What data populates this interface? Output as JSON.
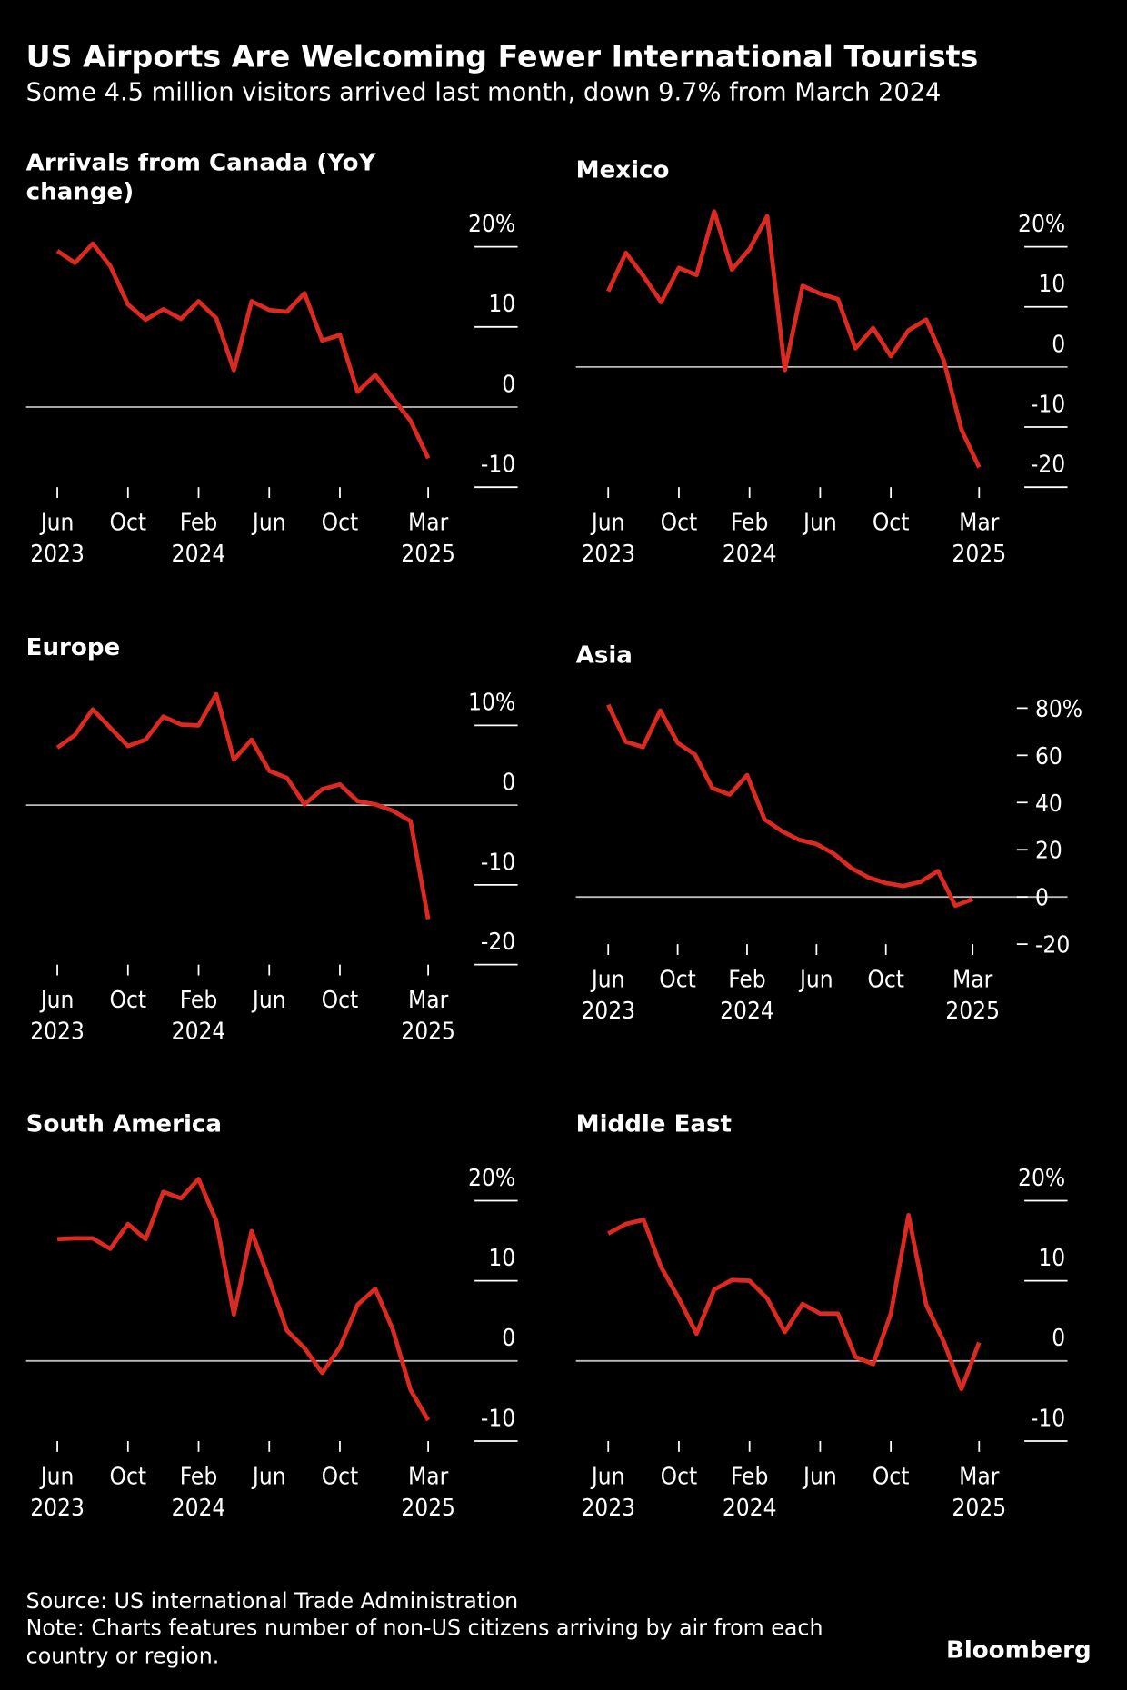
{
  "title": "US Airports Are Welcoming Fewer International Tourists",
  "subtitle": "Some 4.5 million visitors arrived last month, down 9.7% from March 2024",
  "source": "Source: US international Trade Administration",
  "note": "Note: Charts features number of non-US citizens arriving by air from each country or region.",
  "brand": "Bloomberg",
  "chart_data": [
    {
      "type": "line",
      "title": "Arrivals from Canada (YoY change)",
      "color": "#dc2a22",
      "x": [
        "2023-06",
        "2023-07",
        "2023-08",
        "2023-09",
        "2023-10",
        "2023-11",
        "2023-12",
        "2024-01",
        "2024-02",
        "2024-03",
        "2024-04",
        "2024-05",
        "2024-06",
        "2024-07",
        "2024-08",
        "2024-09",
        "2024-10",
        "2024-11",
        "2024-12",
        "2025-01",
        "2025-02",
        "2025-03"
      ],
      "values": [
        19.5,
        18,
        20.4,
        17.6,
        12.8,
        10.9,
        12.2,
        11,
        13.2,
        11.1,
        4.6,
        13.2,
        12.1,
        11.9,
        14.2,
        8.3,
        9,
        1.9,
        4,
        1.1,
        -1.7,
        -6.4
      ],
      "xticks": [
        {
          "value": "2023-06",
          "label": "Jun 2023"
        },
        {
          "value": "2023-10",
          "label": "Oct"
        },
        {
          "value": "2024-02",
          "label": "Feb 2024"
        },
        {
          "value": "2024-06",
          "label": "Jun"
        },
        {
          "value": "2024-10",
          "label": "Oct"
        },
        {
          "value": "2025-03",
          "label": "Mar 2025"
        }
      ],
      "ylim": [
        -10,
        20
      ],
      "yticks": [
        {
          "value": 20,
          "label": "20%"
        },
        10,
        0,
        -10
      ]
    },
    {
      "type": "line",
      "title": "Mexico",
      "color": "#dc2a22",
      "x": [
        "2023-06",
        "2023-07",
        "2023-08",
        "2023-09",
        "2023-10",
        "2023-11",
        "2023-12",
        "2024-01",
        "2024-02",
        "2024-03",
        "2024-04",
        "2024-05",
        "2024-06",
        "2024-07",
        "2024-08",
        "2024-09",
        "2024-10",
        "2024-11",
        "2024-12",
        "2025-01",
        "2025-02",
        "2025-03"
      ],
      "values": [
        12.6,
        19,
        15.1,
        10.8,
        16.5,
        15.3,
        25.9,
        16.2,
        19.6,
        25.1,
        -0.5,
        13.5,
        12.2,
        11.3,
        3.1,
        6.5,
        1.8,
        6.1,
        7.9,
        1.1,
        -10.4,
        -16.7
      ],
      "xticks": [
        {
          "value": "2023-06",
          "label": "Jun 2023"
        },
        {
          "value": "2023-10",
          "label": "Oct"
        },
        {
          "value": "2024-02",
          "label": "Feb 2024"
        },
        {
          "value": "2024-06",
          "label": "Jun"
        },
        {
          "value": "2024-10",
          "label": "Oct"
        },
        {
          "value": "2025-03",
          "label": "Mar 2025"
        }
      ],
      "ylim": [
        -20,
        20
      ],
      "yticks": [
        {
          "value": 20,
          "label": "20%"
        },
        10,
        0,
        -10,
        -20
      ]
    },
    {
      "type": "line",
      "title": "Europe",
      "color": "#dc2a22",
      "x": [
        "2023-06",
        "2023-07",
        "2023-08",
        "2023-09",
        "2023-10",
        "2023-11",
        "2023-12",
        "2024-01",
        "2024-02",
        "2024-03",
        "2024-04",
        "2024-05",
        "2024-06",
        "2024-07",
        "2024-08",
        "2024-09",
        "2024-10",
        "2024-11",
        "2024-12",
        "2025-01",
        "2025-02",
        "2025-03"
      ],
      "values": [
        7.2,
        8.8,
        12,
        9.7,
        7.4,
        8.2,
        11.1,
        10.1,
        10,
        13.9,
        5.7,
        8.2,
        4.3,
        3.4,
        0.1,
        2,
        2.6,
        0.5,
        0.1,
        -0.7,
        -2,
        -14.3
      ],
      "xticks": [
        {
          "value": "2023-06",
          "label": "Jun 2023"
        },
        {
          "value": "2023-10",
          "label": "Oct"
        },
        {
          "value": "2024-02",
          "label": "Feb 2024"
        },
        {
          "value": "2024-06",
          "label": "Jun"
        },
        {
          "value": "2024-10",
          "label": "Oct"
        },
        {
          "value": "2025-03",
          "label": "Mar 2025"
        }
      ],
      "ylim": [
        -20,
        10
      ],
      "yticks": [
        {
          "value": 10,
          "label": "10%"
        },
        0,
        -10,
        -20
      ]
    },
    {
      "type": "line",
      "title": "Asia",
      "color": "#dc2a22",
      "x": [
        "2023-06",
        "2023-07",
        "2023-08",
        "2023-09",
        "2023-10",
        "2023-11",
        "2023-12",
        "2024-01",
        "2024-02",
        "2024-03",
        "2024-04",
        "2024-05",
        "2024-06",
        "2024-07",
        "2024-08",
        "2024-09",
        "2024-10",
        "2024-11",
        "2024-12",
        "2025-01",
        "2025-02",
        "2025-03"
      ],
      "values": [
        81.4,
        65.8,
        63.5,
        79,
        65.3,
        60.3,
        46.1,
        43.4,
        51.6,
        32.9,
        27.9,
        24.2,
        22.4,
        18.3,
        12.3,
        8.2,
        5.9,
        4.6,
        6.4,
        11,
        -3.7,
        -0.9
      ],
      "xticks": [
        {
          "value": "2023-06",
          "label": "Jun 2023"
        },
        {
          "value": "2023-10",
          "label": "Oct"
        },
        {
          "value": "2024-02",
          "label": "Feb 2024"
        },
        {
          "value": "2024-06",
          "label": "Jun"
        },
        {
          "value": "2024-10",
          "label": "Oct"
        },
        {
          "value": "2025-03",
          "label": "Mar 2025"
        }
      ],
      "ylim": [
        -20,
        80
      ],
      "yticks": [
        {
          "value": 80,
          "label": "80%"
        },
        60,
        40,
        20,
        0,
        -20
      ]
    },
    {
      "type": "line",
      "title": "South America",
      "color": "#dc2a22",
      "x": [
        "2023-06",
        "2023-07",
        "2023-08",
        "2023-09",
        "2023-10",
        "2023-11",
        "2023-12",
        "2024-01",
        "2024-02",
        "2024-03",
        "2024-04",
        "2024-05",
        "2024-06",
        "2024-07",
        "2024-08",
        "2024-09",
        "2024-10",
        "2024-11",
        "2024-12",
        "2025-01",
        "2025-02",
        "2025-03"
      ],
      "values": [
        15.2,
        15.3,
        15.3,
        14,
        17.1,
        15.2,
        21.1,
        20.3,
        22.7,
        17.5,
        5.8,
        16.2,
        10.1,
        3.8,
        1.6,
        -1.5,
        1.7,
        7,
        9,
        3.9,
        -3.6,
        -7.4
      ],
      "xticks": [
        {
          "value": "2023-06",
          "label": "Jun 2023"
        },
        {
          "value": "2023-10",
          "label": "Oct"
        },
        {
          "value": "2024-02",
          "label": "Feb 2024"
        },
        {
          "value": "2024-06",
          "label": "Jun"
        },
        {
          "value": "2024-10",
          "label": "Oct"
        },
        {
          "value": "2025-03",
          "label": "Mar 2025"
        }
      ],
      "ylim": [
        -10,
        20
      ],
      "yticks": [
        {
          "value": 20,
          "label": "20%"
        },
        10,
        0,
        -10
      ]
    },
    {
      "type": "line",
      "title": "Middle East",
      "color": "#dc2a22",
      "x": [
        "2023-06",
        "2023-07",
        "2023-08",
        "2023-09",
        "2023-10",
        "2023-11",
        "2023-12",
        "2024-01",
        "2024-02",
        "2024-03",
        "2024-04",
        "2024-05",
        "2024-06",
        "2024-07",
        "2024-08",
        "2024-09",
        "2024-10",
        "2024-11",
        "2024-12",
        "2025-01",
        "2025-02",
        "2025-03"
      ],
      "values": [
        15.9,
        17.1,
        17.6,
        11.7,
        7.8,
        3.4,
        8.9,
        10.1,
        10,
        7.8,
        3.6,
        7.1,
        5.9,
        5.9,
        0.5,
        -0.4,
        5.9,
        18.2,
        7,
        2.4,
        -3.5,
        2.3
      ],
      "xticks": [
        {
          "value": "2023-06",
          "label": "Jun 2023"
        },
        {
          "value": "2023-10",
          "label": "Oct"
        },
        {
          "value": "2024-02",
          "label": "Feb 2024"
        },
        {
          "value": "2024-06",
          "label": "Jun"
        },
        {
          "value": "2024-10",
          "label": "Oct"
        },
        {
          "value": "2025-03",
          "label": "Mar 2025"
        }
      ],
      "ylim": [
        -10,
        20
      ],
      "yticks": [
        {
          "value": 20,
          "label": "20%"
        },
        10,
        0,
        -10
      ]
    }
  ]
}
